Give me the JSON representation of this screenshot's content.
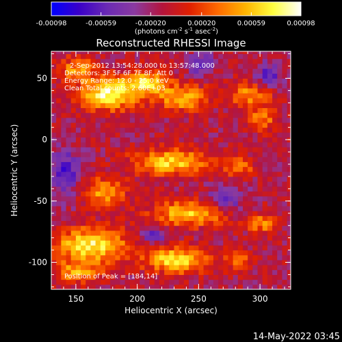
{
  "colorbar": {
    "stops": [
      "#0000ff",
      "#3a00c8",
      "#6a2ab4",
      "#8a3aa0",
      "#b4143c",
      "#e02000",
      "#ff6a00",
      "#ffb400",
      "#ffff40",
      "#ffffff"
    ],
    "ticks": [
      {
        "value": -0.00098,
        "label": "-0.00098"
      },
      {
        "value": -0.00059,
        "label": "-0.00059"
      },
      {
        "value": -0.0002,
        "label": "-0.00020"
      },
      {
        "value": 0.0002,
        "label": "0.00020"
      },
      {
        "value": 0.00059,
        "label": "0.00059"
      },
      {
        "value": 0.00098,
        "label": "0.00098"
      }
    ],
    "range": [
      -0.00098,
      0.00098
    ],
    "unit_main": "(photons cm",
    "unit_exp1": "-2",
    "unit_mid1": " s",
    "unit_exp2": "-1",
    "unit_mid2": " asec",
    "unit_exp3": "-2",
    "unit_end": ")"
  },
  "plot": {
    "title": "Reconstructed RHESSI Image",
    "xlabel": "Heliocentric X (arcsec)",
    "ylabel": "Heliocentric Y (arcsec)",
    "xlim": [
      130,
      325
    ],
    "ylim": [
      -122,
      72
    ],
    "xticks": [
      {
        "value": 150,
        "label": "150"
      },
      {
        "value": 200,
        "label": "200"
      },
      {
        "value": 250,
        "label": "250"
      },
      {
        "value": 300,
        "label": "300"
      }
    ],
    "yticks": [
      {
        "value": 50,
        "label": "50"
      },
      {
        "value": 0,
        "label": "0"
      },
      {
        "value": -50,
        "label": "-50"
      },
      {
        "value": -100,
        "label": "-100"
      }
    ],
    "annotations": [
      "2-Sep-2012 13:54:28.000 to 13:57:48.000",
      "Detectors: 3F 5F 6F 7F 8F, Att 0",
      "Energy Range: 12.0 - 25.0 keV",
      "Clean     Total counts: 2.60E+03"
    ],
    "peak_label": "Position of Peak = [184,14]",
    "peak_position": [
      184,
      14
    ]
  },
  "footer": {
    "timestamp": "14-May-2022 03:45"
  }
}
